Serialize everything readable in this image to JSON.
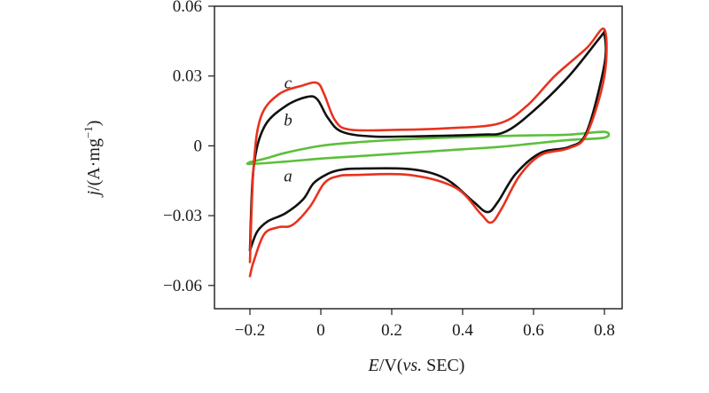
{
  "chart_data": {
    "type": "line",
    "xlabel": {
      "italic": "E",
      "rest": "/V(",
      "italic2": "vs.",
      "rest2": " SEC)"
    },
    "ylabel": {
      "italic": "j",
      "rest": "/(A·mg",
      "sup": "−1",
      "close": ")"
    },
    "xlim": [
      -0.3,
      0.85
    ],
    "ylim": [
      -0.07,
      0.06
    ],
    "xticks": [
      {
        "value": -0.2,
        "label": "−0.2"
      },
      {
        "value": 0,
        "label": "0"
      },
      {
        "value": 0.2,
        "label": "0.2"
      },
      {
        "value": 0.4,
        "label": "0.4"
      },
      {
        "value": 0.6,
        "label": "0.6"
      },
      {
        "value": 0.8,
        "label": "0.8"
      }
    ],
    "yticks": [
      {
        "value": 0.06,
        "label": "0.06"
      },
      {
        "value": 0.03,
        "label": "0.03"
      },
      {
        "value": 0,
        "label": "0"
      },
      {
        "value": -0.03,
        "label": "−0.03"
      },
      {
        "value": -0.06,
        "label": "−0.06"
      }
    ],
    "grid": false,
    "series": [
      {
        "label": "a",
        "color": "#5cbf3a",
        "points": [
          [
            -0.2,
            -0.007
          ],
          [
            -0.15,
            -0.0052
          ],
          [
            -0.1,
            -0.003
          ],
          [
            0,
            0
          ],
          [
            0.1,
            0.0015
          ],
          [
            0.2,
            0.0025
          ],
          [
            0.3,
            0.0032
          ],
          [
            0.4,
            0.0038
          ],
          [
            0.5,
            0.0042
          ],
          [
            0.6,
            0.0045
          ],
          [
            0.7,
            0.0048
          ],
          [
            0.8,
            0.006
          ],
          [
            0.8,
            0.0035
          ],
          [
            0.7,
            0.0025
          ],
          [
            0.6,
            0.001
          ],
          [
            0.5,
            -0.0005
          ],
          [
            0.4,
            -0.0015
          ],
          [
            0.3,
            -0.0025
          ],
          [
            0.2,
            -0.0035
          ],
          [
            0.1,
            -0.0045
          ],
          [
            0,
            -0.0055
          ],
          [
            -0.1,
            -0.0068
          ],
          [
            -0.2,
            -0.0078
          ],
          [
            -0.2,
            -0.007
          ]
        ]
      },
      {
        "label": "b",
        "color": "#111111",
        "points": [
          [
            -0.2,
            -0.045
          ],
          [
            -0.19,
            -0.01
          ],
          [
            -0.16,
            0.008
          ],
          [
            -0.1,
            0.017
          ],
          [
            -0.04,
            0.021
          ],
          [
            -0.01,
            0.02
          ],
          [
            0.02,
            0.012
          ],
          [
            0.06,
            0.006
          ],
          [
            0.15,
            0.004
          ],
          [
            0.3,
            0.0042
          ],
          [
            0.45,
            0.0048
          ],
          [
            0.52,
            0.006
          ],
          [
            0.6,
            0.015
          ],
          [
            0.7,
            0.03
          ],
          [
            0.79,
            0.047
          ],
          [
            0.8,
            0.048
          ],
          [
            0.8,
            0.035
          ],
          [
            0.75,
            0.006
          ],
          [
            0.7,
            -0.0005
          ],
          [
            0.62,
            -0.003
          ],
          [
            0.55,
            -0.012
          ],
          [
            0.5,
            -0.024
          ],
          [
            0.47,
            -0.0285
          ],
          [
            0.43,
            -0.024
          ],
          [
            0.35,
            -0.014
          ],
          [
            0.25,
            -0.01
          ],
          [
            0.1,
            -0.0098
          ],
          [
            0.05,
            -0.0105
          ],
          [
            0.02,
            -0.012
          ],
          [
            -0.02,
            -0.016
          ],
          [
            -0.05,
            -0.023
          ],
          [
            -0.1,
            -0.029
          ],
          [
            -0.15,
            -0.0325
          ],
          [
            -0.18,
            -0.037
          ],
          [
            -0.2,
            -0.045
          ]
        ]
      },
      {
        "label": "c",
        "color": "#e8321e",
        "points": [
          [
            -0.2,
            -0.05
          ],
          [
            -0.19,
            -0.01
          ],
          [
            -0.17,
            0.012
          ],
          [
            -0.12,
            0.022
          ],
          [
            -0.05,
            0.026
          ],
          [
            -0.01,
            0.027
          ],
          [
            0.01,
            0.022
          ],
          [
            0.04,
            0.011
          ],
          [
            0.08,
            0.007
          ],
          [
            0.2,
            0.0068
          ],
          [
            0.35,
            0.0075
          ],
          [
            0.5,
            0.0095
          ],
          [
            0.58,
            0.017
          ],
          [
            0.66,
            0.03
          ],
          [
            0.75,
            0.042
          ],
          [
            0.8,
            0.05
          ],
          [
            0.8,
            0.03
          ],
          [
            0.75,
            0.005
          ],
          [
            0.7,
            -0.001
          ],
          [
            0.62,
            -0.004
          ],
          [
            0.56,
            -0.013
          ],
          [
            0.51,
            -0.027
          ],
          [
            0.48,
            -0.033
          ],
          [
            0.45,
            -0.029
          ],
          [
            0.38,
            -0.018
          ],
          [
            0.25,
            -0.0125
          ],
          [
            0.1,
            -0.0125
          ],
          [
            0.05,
            -0.013
          ],
          [
            0.01,
            -0.016
          ],
          [
            -0.03,
            -0.026
          ],
          [
            -0.08,
            -0.034
          ],
          [
            -0.12,
            -0.035
          ],
          [
            -0.16,
            -0.038
          ],
          [
            -0.19,
            -0.05
          ],
          [
            -0.2,
            -0.056
          ]
        ]
      }
    ],
    "curve_labels": [
      {
        "text": "a",
        "x": -0.1,
        "y": -0.013
      },
      {
        "text": "b",
        "x": -0.1,
        "y": 0.011
      },
      {
        "text": "c",
        "x": -0.1,
        "y": 0.027
      }
    ]
  }
}
